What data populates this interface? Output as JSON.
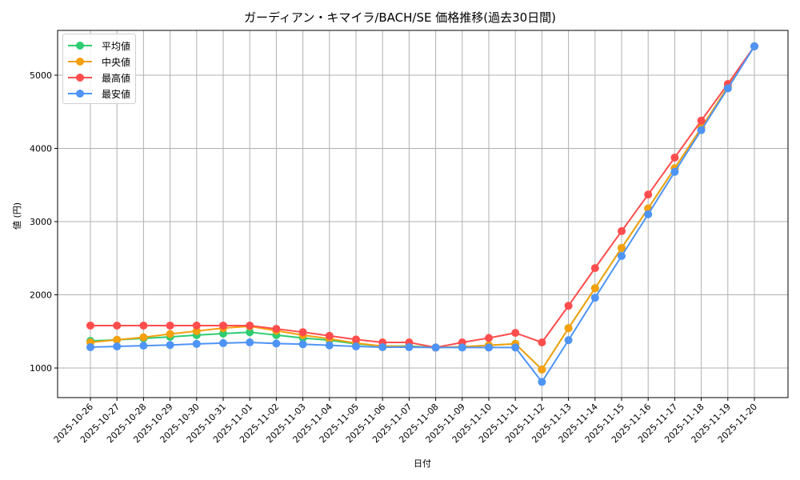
{
  "chart_data": {
    "type": "line",
    "title": "ガーディアン・キマイラ/BACH/SE 価格推移(過去30日間)",
    "xlabel": "日付",
    "ylabel": "値 (円)",
    "ylim": [
      596,
      5612
    ],
    "yticks": [
      1000,
      2000,
      3000,
      4000,
      5000
    ],
    "grid": true,
    "legend_position": "upper left",
    "categories": [
      "2025-10-26",
      "2025-10-27",
      "2025-10-28",
      "2025-10-29",
      "2025-10-30",
      "2025-10-31",
      "2025-11-01",
      "2025-11-02",
      "2025-11-03",
      "2025-11-04",
      "2025-11-05",
      "2025-11-06",
      "2025-11-07",
      "2025-11-08",
      "2025-11-09",
      "2025-11-10",
      "2025-11-11",
      "2025-11-12",
      "2025-11-13",
      "2025-11-14",
      "2025-11-15",
      "2025-11-16",
      "2025-11-17",
      "2025-11-18",
      "2025-11-19",
      "2025-11-20"
    ],
    "series": [
      {
        "name": "平均値",
        "color": "#2ecc71",
        "values": [
          1370,
          1385,
          1405,
          1425,
          1450,
          1470,
          1490,
          1450,
          1410,
          1380,
          1330,
          1300,
          1300,
          1280,
          1290,
          1310,
          1330,
          980,
          1545,
          2090,
          2640,
          3180,
          3730,
          4280,
          4840,
          5395
        ]
      },
      {
        "name": "中央値",
        "color": "#f5a00e",
        "values": [
          1350,
          1385,
          1420,
          1465,
          1505,
          1545,
          1570,
          1510,
          1450,
          1400,
          1340,
          1300,
          1290,
          1280,
          1290,
          1310,
          1330,
          980,
          1545,
          2090,
          2640,
          3180,
          3730,
          4280,
          4840,
          5395
        ]
      },
      {
        "name": "最高値",
        "color": "#ff4d4d",
        "values": [
          1580,
          1580,
          1580,
          1580,
          1580,
          1580,
          1580,
          1535,
          1490,
          1440,
          1390,
          1350,
          1350,
          1280,
          1350,
          1410,
          1480,
          1350,
          1850,
          2365,
          2870,
          3370,
          3875,
          4380,
          4880,
          5395
        ]
      },
      {
        "name": "最安値",
        "color": "#4e94f5",
        "values": [
          1285,
          1295,
          1305,
          1315,
          1330,
          1340,
          1350,
          1335,
          1325,
          1310,
          1295,
          1285,
          1285,
          1280,
          1280,
          1280,
          1280,
          810,
          1380,
          1960,
          2530,
          3100,
          3680,
          4250,
          4820,
          5395
        ]
      }
    ]
  },
  "legend": [
    {
      "label": "平均値",
      "color": "#2ecc71"
    },
    {
      "label": "中央値",
      "color": "#f5a00e"
    },
    {
      "label": "最高値",
      "color": "#ff4d4d"
    },
    {
      "label": "最安値",
      "color": "#4e94f5"
    }
  ]
}
